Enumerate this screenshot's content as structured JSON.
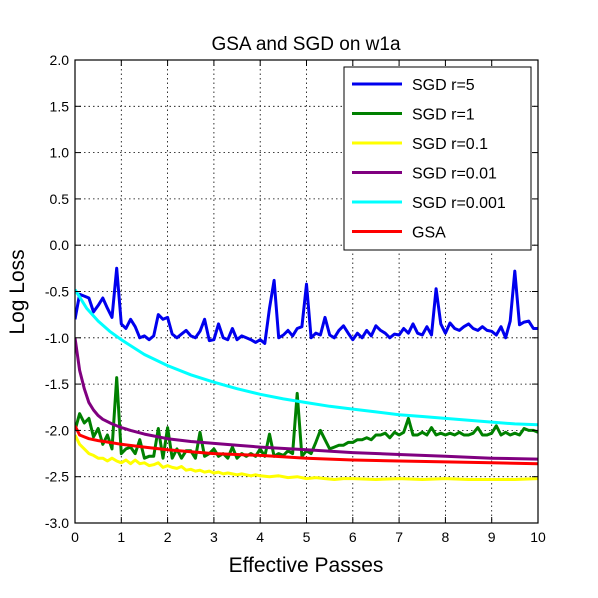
{
  "chart_data": {
    "type": "line",
    "title": "GSA and SGD on w1a",
    "xlabel": "Effective Passes",
    "ylabel": "Log Loss",
    "xlim": [
      0,
      10
    ],
    "ylim": [
      -3.0,
      2.0
    ],
    "xticks": [
      "0",
      "1",
      "2",
      "3",
      "4",
      "5",
      "6",
      "7",
      "8",
      "9",
      "10"
    ],
    "yticks": [
      "2.0",
      "1.5",
      "1.0",
      "0.5",
      "0.0",
      "-0.5",
      "-1.0",
      "-1.5",
      "-2.0",
      "-2.5",
      "-3.0"
    ],
    "grid": true,
    "legend_position": "top-right",
    "series": [
      {
        "name": "SGD r=5",
        "color": "#0000ee",
        "x": [
          0.0,
          0.1,
          0.2,
          0.3,
          0.4,
          0.5,
          0.6,
          0.7,
          0.8,
          0.9,
          1.0,
          1.1,
          1.2,
          1.3,
          1.4,
          1.5,
          1.6,
          1.7,
          1.8,
          1.9,
          2.0,
          2.1,
          2.2,
          2.3,
          2.4,
          2.5,
          2.6,
          2.7,
          2.8,
          2.9,
          3.0,
          3.1,
          3.2,
          3.3,
          3.4,
          3.5,
          3.6,
          3.7,
          3.8,
          3.9,
          4.0,
          4.1,
          4.2,
          4.3,
          4.4,
          4.5,
          4.6,
          4.7,
          4.8,
          4.9,
          5.0,
          5.1,
          5.2,
          5.3,
          5.4,
          5.5,
          5.6,
          5.7,
          5.8,
          5.9,
          6.0,
          6.1,
          6.2,
          6.3,
          6.4,
          6.5,
          6.6,
          6.7,
          6.8,
          6.9,
          7.0,
          7.1,
          7.2,
          7.3,
          7.4,
          7.5,
          7.6,
          7.7,
          7.8,
          7.9,
          8.0,
          8.1,
          8.2,
          8.3,
          8.4,
          8.5,
          8.6,
          8.7,
          8.8,
          8.9,
          9.0,
          9.1,
          9.2,
          9.3,
          9.4,
          9.5,
          9.6,
          9.7,
          9.8,
          9.9,
          10.0
        ],
        "y": [
          -0.8,
          -0.53,
          -0.55,
          -0.57,
          -0.72,
          -0.65,
          -0.57,
          -0.68,
          -0.78,
          -0.25,
          -0.85,
          -0.9,
          -0.8,
          -0.88,
          -1.0,
          -0.98,
          -1.02,
          -0.98,
          -0.75,
          -0.8,
          -0.78,
          -0.96,
          -1.0,
          -0.96,
          -0.92,
          -0.98,
          -1.0,
          -0.93,
          -0.8,
          -1.03,
          -1.02,
          -0.85,
          -1.0,
          -1.02,
          -0.9,
          -1.02,
          -0.98,
          -1.0,
          -1.02,
          -1.05,
          -1.02,
          -1.06,
          -0.68,
          -0.38,
          -1.0,
          -0.97,
          -0.92,
          -0.98,
          -0.9,
          -0.88,
          -0.42,
          -1.0,
          -0.95,
          -0.97,
          -0.78,
          -0.97,
          -1.0,
          -0.92,
          -0.87,
          -0.95,
          -1.02,
          -0.95,
          -1.0,
          -0.92,
          -0.98,
          -0.87,
          -0.92,
          -0.95,
          -1.0,
          -0.96,
          -0.97,
          -0.9,
          -0.95,
          -0.85,
          -0.95,
          -0.97,
          -0.88,
          -0.97,
          -0.47,
          -0.85,
          -0.95,
          -0.84,
          -0.9,
          -0.92,
          -0.88,
          -0.85,
          -0.9,
          -0.92,
          -0.88,
          -0.92,
          -0.93,
          -0.97,
          -0.88,
          -1.0,
          -0.82,
          -0.28,
          -0.86,
          -0.83,
          -0.82,
          -0.9,
          -0.9
        ]
      },
      {
        "name": "SGD r=1",
        "color": "#008000",
        "x": [
          0.0,
          0.1,
          0.2,
          0.3,
          0.4,
          0.5,
          0.6,
          0.7,
          0.8,
          0.9,
          1.0,
          1.1,
          1.2,
          1.3,
          1.4,
          1.5,
          1.6,
          1.7,
          1.8,
          1.9,
          2.0,
          2.1,
          2.2,
          2.3,
          2.4,
          2.5,
          2.6,
          2.7,
          2.8,
          2.9,
          3.0,
          3.1,
          3.2,
          3.3,
          3.4,
          3.5,
          3.6,
          3.7,
          3.8,
          3.9,
          4.0,
          4.1,
          4.2,
          4.3,
          4.4,
          4.5,
          4.6,
          4.7,
          4.8,
          4.9,
          5.0,
          5.1,
          5.2,
          5.3,
          5.4,
          5.5,
          5.6,
          5.7,
          5.8,
          5.9,
          6.0,
          6.1,
          6.2,
          6.3,
          6.4,
          6.5,
          6.6,
          6.7,
          6.8,
          6.9,
          7.0,
          7.1,
          7.2,
          7.3,
          7.4,
          7.5,
          7.6,
          7.7,
          7.8,
          7.9,
          8.0,
          8.1,
          8.2,
          8.3,
          8.4,
          8.5,
          8.6,
          8.7,
          8.8,
          8.9,
          9.0,
          9.1,
          9.2,
          9.3,
          9.4,
          9.5,
          9.6,
          9.7,
          9.8,
          9.9,
          10.0
        ],
        "y": [
          -2.0,
          -1.82,
          -1.92,
          -1.87,
          -2.07,
          -1.98,
          -2.15,
          -2.05,
          -2.2,
          -1.43,
          -2.25,
          -2.2,
          -2.18,
          -2.25,
          -2.1,
          -2.3,
          -2.28,
          -2.28,
          -1.98,
          -2.3,
          -1.97,
          -2.3,
          -2.2,
          -2.3,
          -2.22,
          -2.22,
          -2.3,
          -2.02,
          -2.28,
          -2.25,
          -2.2,
          -2.28,
          -2.25,
          -2.3,
          -2.18,
          -2.3,
          -2.25,
          -2.28,
          -2.25,
          -2.28,
          -2.2,
          -2.28,
          -2.04,
          -2.28,
          -2.25,
          -2.27,
          -2.22,
          -2.25,
          -1.6,
          -2.28,
          -2.22,
          -2.25,
          -2.13,
          -2.0,
          -2.1,
          -2.2,
          -2.18,
          -2.16,
          -2.16,
          -2.13,
          -2.13,
          -2.1,
          -2.1,
          -2.08,
          -2.1,
          -2.05,
          -2.05,
          -2.03,
          -2.08,
          -2.02,
          -2.05,
          -2.02,
          -1.87,
          -2.05,
          -2.05,
          -2.02,
          -2.05,
          -1.97,
          -2.05,
          -2.03,
          -2.05,
          -2.03,
          -2.05,
          -2.02,
          -2.05,
          -2.05,
          -2.03,
          -1.97,
          -2.05,
          -2.05,
          -2.03,
          -1.95,
          -2.05,
          -2.02,
          -2.05,
          -2.03,
          -2.05,
          -1.98,
          -2.0,
          -2.0,
          -2.02
        ]
      },
      {
        "name": "SGD r=0.1",
        "color": "#ffff00",
        "x": [
          0.0,
          0.1,
          0.2,
          0.3,
          0.4,
          0.5,
          0.6,
          0.7,
          0.8,
          0.9,
          1.0,
          1.1,
          1.2,
          1.3,
          1.4,
          1.5,
          1.6,
          1.7,
          1.8,
          1.9,
          2.0,
          2.1,
          2.2,
          2.3,
          2.4,
          2.5,
          2.6,
          2.7,
          2.8,
          2.9,
          3.0,
          3.1,
          3.2,
          3.3,
          3.4,
          3.5,
          3.6,
          3.7,
          3.8,
          3.9,
          4.0,
          4.2,
          4.4,
          4.6,
          4.8,
          5.0,
          5.2,
          5.4,
          5.6,
          5.8,
          6.0,
          6.5,
          7.0,
          7.5,
          8.0,
          8.5,
          9.0,
          9.5,
          10.0
        ],
        "y": [
          -2.05,
          -2.15,
          -2.2,
          -2.25,
          -2.27,
          -2.3,
          -2.3,
          -2.33,
          -2.3,
          -2.33,
          -2.35,
          -2.32,
          -2.36,
          -2.32,
          -2.36,
          -2.35,
          -2.38,
          -2.37,
          -2.35,
          -2.4,
          -2.38,
          -2.4,
          -2.41,
          -2.39,
          -2.43,
          -2.42,
          -2.44,
          -2.43,
          -2.45,
          -2.44,
          -2.46,
          -2.45,
          -2.47,
          -2.46,
          -2.47,
          -2.48,
          -2.47,
          -2.48,
          -2.49,
          -2.48,
          -2.49,
          -2.5,
          -2.49,
          -2.51,
          -2.5,
          -2.52,
          -2.51,
          -2.52,
          -2.53,
          -2.52,
          -2.52,
          -2.53,
          -2.52,
          -2.53,
          -2.52,
          -2.53,
          -2.53,
          -2.53,
          -2.52
        ]
      },
      {
        "name": "SGD r=0.01",
        "color": "#800080",
        "x": [
          0.0,
          0.1,
          0.2,
          0.3,
          0.4,
          0.5,
          0.6,
          0.8,
          1.0,
          1.2,
          1.5,
          2.0,
          2.5,
          3.0,
          3.5,
          4.0,
          5.0,
          6.0,
          7.0,
          8.0,
          9.0,
          10.0
        ],
        "y": [
          -1.0,
          -1.35,
          -1.55,
          -1.7,
          -1.78,
          -1.84,
          -1.88,
          -1.93,
          -1.97,
          -2.0,
          -2.04,
          -2.09,
          -2.12,
          -2.14,
          -2.16,
          -2.18,
          -2.21,
          -2.24,
          -2.26,
          -2.28,
          -2.3,
          -2.31
        ]
      },
      {
        "name": "SGD r=0.001",
        "color": "#00ffff",
        "x": [
          0.0,
          0.25,
          0.5,
          0.75,
          1.0,
          1.5,
          2.0,
          2.5,
          3.0,
          3.5,
          4.0,
          4.5,
          5.0,
          5.5,
          6.0,
          6.5,
          7.0,
          7.5,
          8.0,
          8.5,
          9.0,
          9.5,
          10.0
        ],
        "y": [
          -0.48,
          -0.68,
          -0.82,
          -0.93,
          -1.02,
          -1.18,
          -1.3,
          -1.4,
          -1.48,
          -1.55,
          -1.61,
          -1.66,
          -1.7,
          -1.74,
          -1.77,
          -1.8,
          -1.83,
          -1.85,
          -1.87,
          -1.89,
          -1.91,
          -1.93,
          -1.94
        ]
      },
      {
        "name": "GSA",
        "color": "#ff0000",
        "x": [
          0.0,
          0.1,
          0.2,
          0.3,
          0.5,
          0.75,
          1.0,
          1.5,
          2.0,
          2.5,
          3.0,
          3.5,
          4.0,
          5.0,
          6.0,
          7.0,
          8.0,
          9.0,
          10.0
        ],
        "y": [
          -1.95,
          -2.05,
          -2.07,
          -2.09,
          -2.11,
          -2.13,
          -2.15,
          -2.18,
          -2.21,
          -2.23,
          -2.25,
          -2.26,
          -2.27,
          -2.3,
          -2.32,
          -2.33,
          -2.34,
          -2.35,
          -2.36
        ]
      }
    ]
  }
}
